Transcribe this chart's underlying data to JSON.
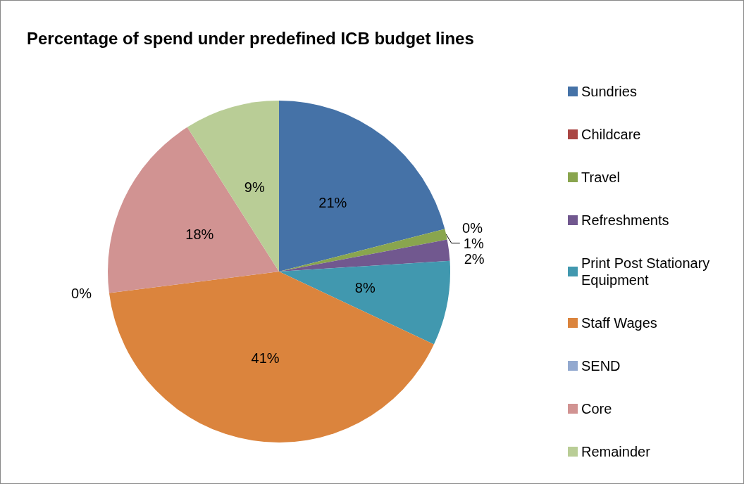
{
  "chart_data": {
    "type": "pie",
    "title": "Percentage of spend under predefined ICB budget lines",
    "categories": [
      "Sundries",
      "Childcare",
      "Travel",
      "Refreshments",
      "Print Post Stationary Equipment",
      "Staff Wages",
      "SEND",
      "Core",
      "Remainder"
    ],
    "values": [
      21,
      0,
      1,
      2,
      8,
      41,
      0,
      18,
      9
    ],
    "colors": [
      "#4572a7",
      "#aa4643",
      "#89a54e",
      "#71588f",
      "#4198af",
      "#db843d",
      "#93a9cf",
      "#d19392",
      "#b9cd96"
    ],
    "value_labels": [
      "21%",
      "0%",
      "1%",
      "2%",
      "8%",
      "41%",
      "0%",
      "18%",
      "9%"
    ],
    "legend": "right"
  }
}
